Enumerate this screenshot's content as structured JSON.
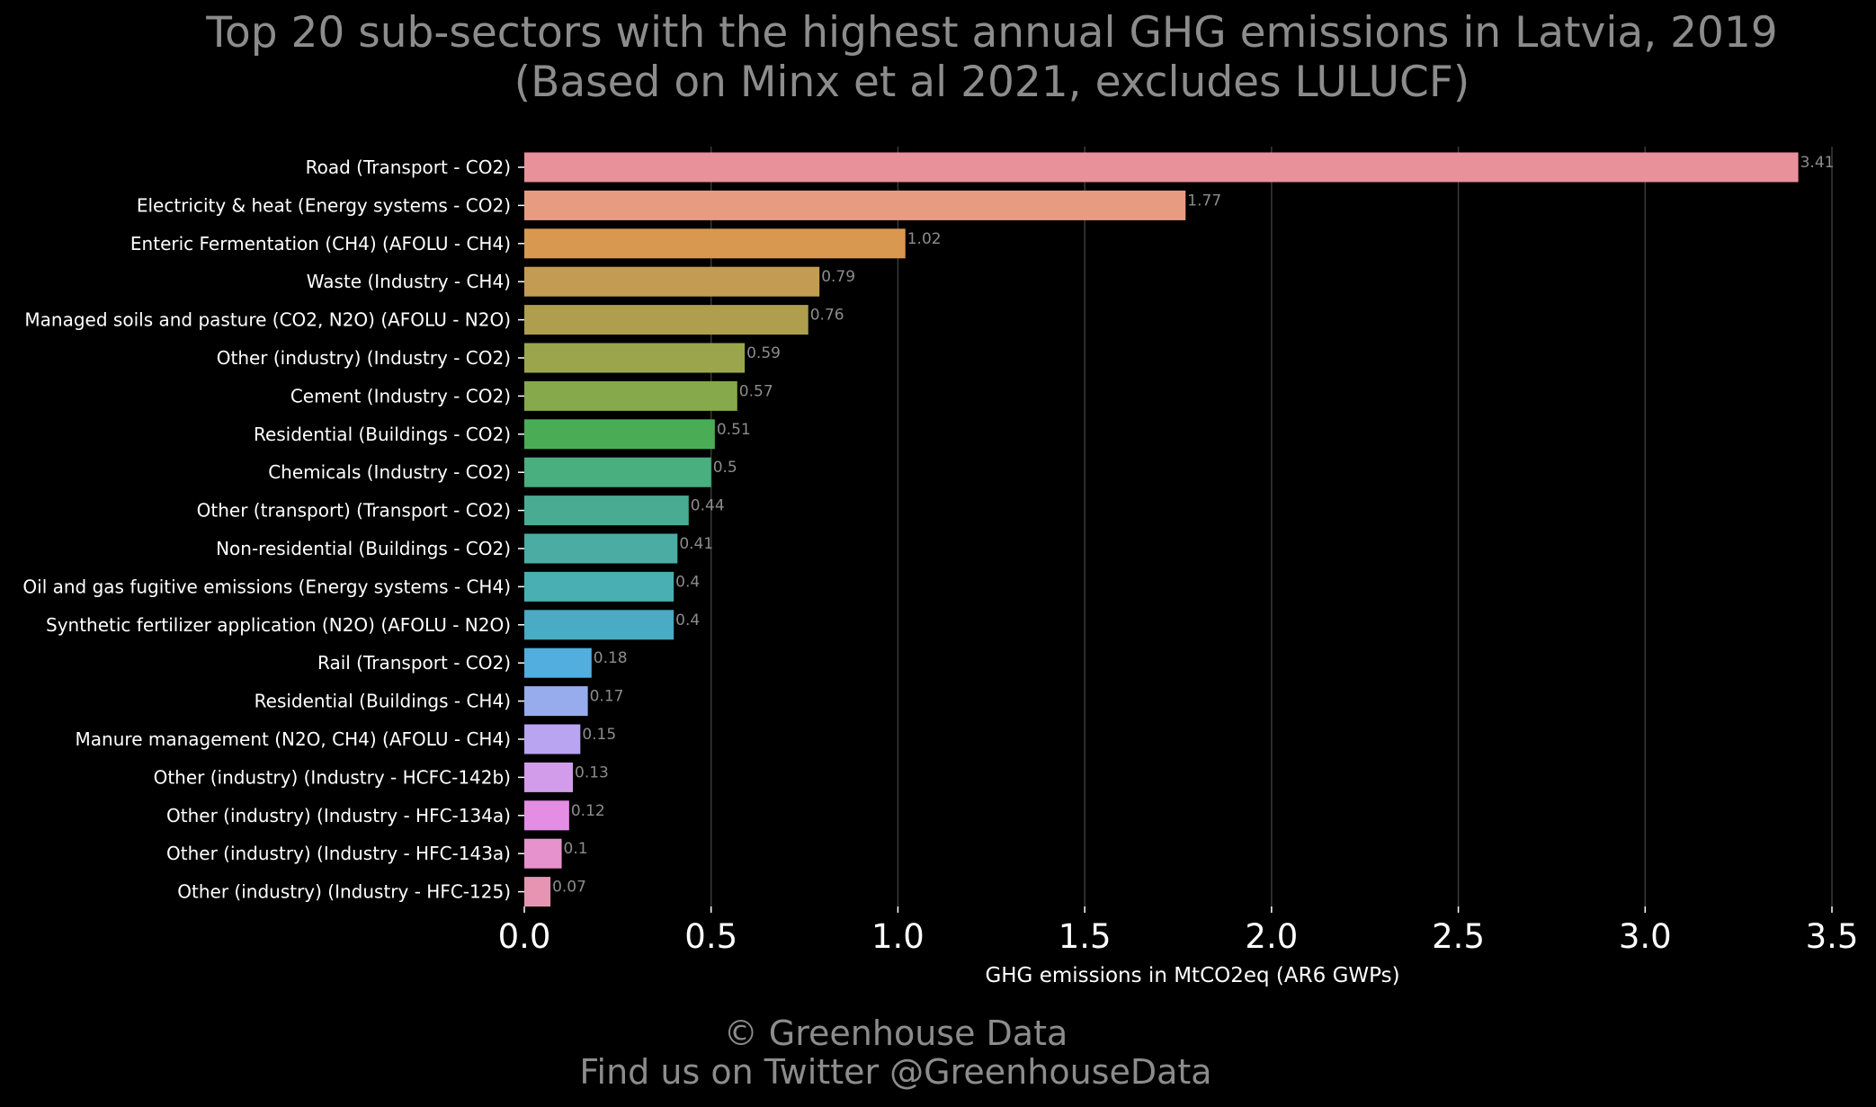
{
  "chart_data": {
    "type": "bar",
    "orientation": "horizontal",
    "title": "Top 20 sub-sectors with the highest annual GHG emissions in Latvia, 2019",
    "subtitle": "(Based on Minx et al 2021, excludes LULUCF)",
    "xlabel": "GHG emissions in MtCO2eq (AR6 GWPs)",
    "ylabel": "",
    "xlim": [
      0,
      3.5
    ],
    "xticks": [
      "0.0",
      "0.5",
      "1.0",
      "1.5",
      "2.0",
      "2.5",
      "3.0",
      "3.5"
    ],
    "grid": "vertical",
    "categories": [
      "Road (Transport - CO2)",
      "Electricity & heat (Energy systems - CO2)",
      "Enteric Fermentation (CH4) (AFOLU - CH4)",
      "Waste (Industry - CH4)",
      "Managed soils and pasture (CO2, N2O) (AFOLU - N2O)",
      "Other (industry) (Industry - CO2)",
      "Cement (Industry - CO2)",
      "Residential (Buildings - CO2)",
      "Chemicals (Industry - CO2)",
      "Other (transport) (Transport - CO2)",
      "Non-residential (Buildings - CO2)",
      "Oil and gas fugitive emissions (Energy systems - CH4)",
      "Synthetic fertilizer application (N2O) (AFOLU - N2O)",
      "Rail  (Transport - CO2)",
      "Residential (Buildings - CH4)",
      "Manure management (N2O, CH4) (AFOLU - CH4)",
      "Other (industry) (Industry - HCFC-142b)",
      "Other (industry) (Industry - HFC-134a)",
      "Other (industry) (Industry - HFC-143a)",
      "Other (industry) (Industry - HFC-125)"
    ],
    "values": [
      3.41,
      1.77,
      1.02,
      0.79,
      0.76,
      0.59,
      0.57,
      0.51,
      0.5,
      0.44,
      0.41,
      0.4,
      0.4,
      0.18,
      0.17,
      0.15,
      0.13,
      0.12,
      0.1,
      0.07
    ],
    "value_labels": [
      "3.41",
      "1.77",
      "1.02",
      "0.79",
      "0.76",
      "0.59",
      "0.57",
      "0.51",
      "0.5",
      "0.44",
      "0.41",
      "0.4",
      "0.4",
      "0.18",
      "0.17",
      "0.15",
      "0.13",
      "0.12",
      "0.1",
      "0.07"
    ],
    "colors": [
      "#e8919a",
      "#e79c82",
      "#d89850",
      "#c49b52",
      "#ae9e4d",
      "#9ba64c",
      "#86a94b",
      "#4aad55",
      "#4aaf7f",
      "#49ab92",
      "#4aaca2",
      "#4aafb2",
      "#4aabc4",
      "#52aedf",
      "#97aced",
      "#b8a4f0",
      "#d29cea",
      "#e38ee4",
      "#e692cc",
      "#e694b2"
    ]
  },
  "footer": {
    "line1": "© Greenhouse Data",
    "line2": "Find us on Twitter @GreenhouseData"
  }
}
